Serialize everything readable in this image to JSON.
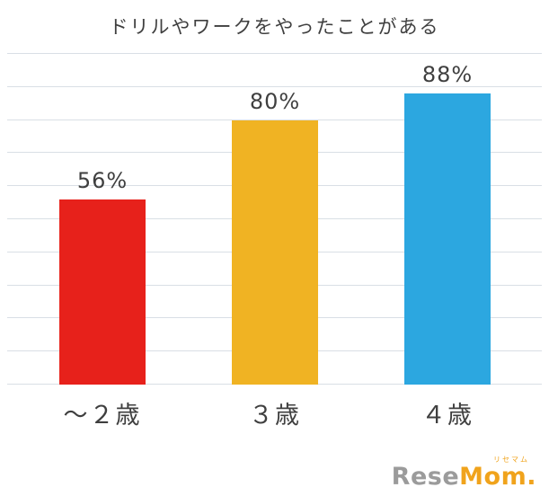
{
  "chart_data": {
    "type": "bar",
    "title": "ドリルやワークをやったことがある",
    "categories": [
      "〜２歳",
      "３歳",
      "４歳"
    ],
    "values": [
      56,
      80,
      88
    ],
    "value_labels": [
      "56%",
      "80%",
      "88%"
    ],
    "bar_colors": [
      "#e7211b",
      "#f0b323",
      "#2ca7e0"
    ],
    "xlabel": "",
    "ylabel": "",
    "ylim": [
      0,
      100
    ],
    "grid": true,
    "gridline_step": 10,
    "gridline_color": "#d9dfe5",
    "legend": false
  },
  "logo": {
    "ruby": "リセマム",
    "prefix": "Rese",
    "suffix": "Mom",
    "dot": ".",
    "prefix_color": "#9b9b9b",
    "suffix_color": "#f0a31c",
    "ruby_color": "#f0a31c"
  }
}
